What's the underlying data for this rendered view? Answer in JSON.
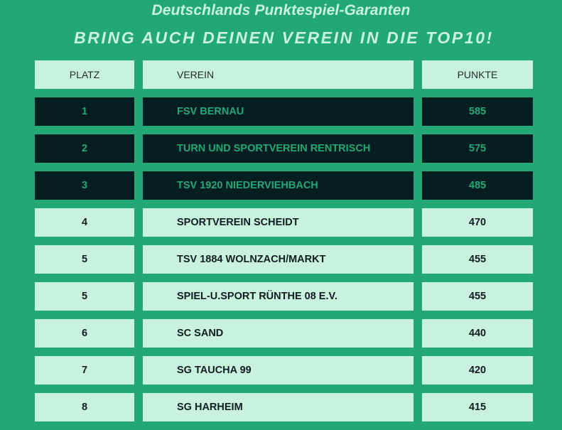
{
  "header": {
    "title": "Deutschlands Punktespiel-Garanten",
    "subtitle": "BRING AUCH DEINEN VEREIN IN DIE TOP10!"
  },
  "table": {
    "columns": {
      "platz": "PLATZ",
      "verein": "VEREIN",
      "punkte": "PUNKTE"
    },
    "rows": [
      {
        "platz": "1",
        "verein": "FSV BERNAU",
        "punkte": "585"
      },
      {
        "platz": "2",
        "verein": "TURN UND SPORTVEREIN RENTRISCH",
        "punkte": "575"
      },
      {
        "platz": "3",
        "verein": "TSV 1920 NIEDERVIEHBACH",
        "punkte": "485"
      },
      {
        "platz": "4",
        "verein": "SPORTVEREIN SCHEIDT",
        "punkte": "470"
      },
      {
        "platz": "5",
        "verein": "TSV 1884 WOLNZACH/MARKT",
        "punkte": "455"
      },
      {
        "platz": "5",
        "verein": "SPIEL-U.SPORT RÜNTHE 08 E.V.",
        "punkte": "455"
      },
      {
        "platz": "6",
        "verein": "SC SAND",
        "punkte": "440"
      },
      {
        "platz": "7",
        "verein": "SG TAUCHA 99",
        "punkte": "420"
      },
      {
        "platz": "8",
        "verein": "SG HARHEIM",
        "punkte": "415"
      }
    ]
  },
  "colors": {
    "background": "#22a874",
    "light_cell": "#c8f1de",
    "dark_cell": "#051e22",
    "highlight_text": "#22a874"
  }
}
